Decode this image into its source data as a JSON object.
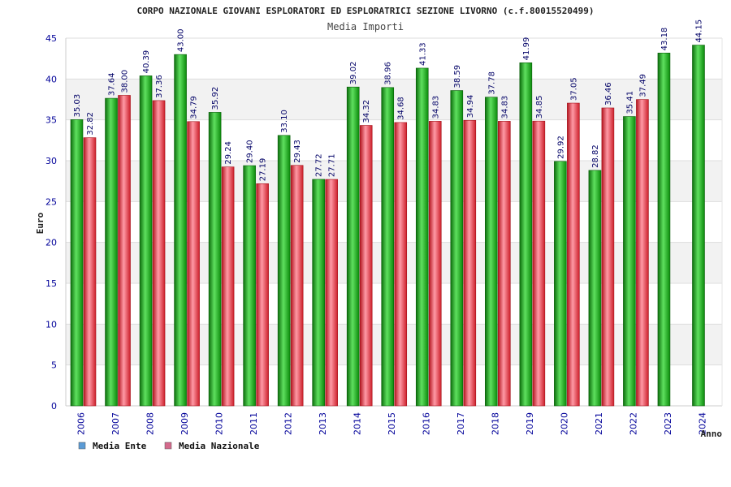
{
  "chart_data": {
    "type": "bar",
    "title": "CORPO NAZIONALE GIOVANI ESPLORATORI ED ESPLORATRICI SEZIONE LIVORNO (c.f.80015520499)",
    "subtitle": "Media Importi",
    "xlabel": "Anno",
    "ylabel": "Euro",
    "ylim": [
      0,
      45
    ],
    "yticks": [
      "0",
      "5",
      "10",
      "15",
      "20",
      "25",
      "30",
      "35",
      "40",
      "45"
    ],
    "grid": true,
    "legend_position": "bottom-left",
    "categories": [
      "2006",
      "2007",
      "2008",
      "2009",
      "2010",
      "2011",
      "2012",
      "2013",
      "2014",
      "2015",
      "2016",
      "2017",
      "2018",
      "2019",
      "2020",
      "2021",
      "2022",
      "2023",
      "2024"
    ],
    "series": [
      {
        "name": "Media Ente",
        "color": "#1fa31f",
        "legend_color": "#5b9bd5",
        "values": [
          35.03,
          37.64,
          40.39,
          43.0,
          35.92,
          29.4,
          33.1,
          27.72,
          39.02,
          38.96,
          41.33,
          38.59,
          37.78,
          41.99,
          29.92,
          28.82,
          35.41,
          43.18,
          44.15
        ],
        "labels": [
          "35.03",
          "37.64",
          "40.39",
          "43.00",
          "35.92",
          "29.40",
          "33.10",
          "27.72",
          "39.02",
          "38.96",
          "41.33",
          "38.59",
          "37.78",
          "41.99",
          "29.92",
          "28.82",
          "35.41",
          "43.18",
          "44.15"
        ]
      },
      {
        "name": "Media Nazionale",
        "color": "#e0303a",
        "legend_color": "#d46a8c",
        "values": [
          32.82,
          38.0,
          37.36,
          34.79,
          29.24,
          27.19,
          29.43,
          27.71,
          34.32,
          34.68,
          34.83,
          34.94,
          34.83,
          34.85,
          37.05,
          36.46,
          37.49,
          null,
          null
        ],
        "labels": [
          "32.82",
          "38.00",
          "37.36",
          "34.79",
          "29.24",
          "27.19",
          "29.43",
          "27.71",
          "34.32",
          "34.68",
          "34.83",
          "34.94",
          "34.83",
          "34.85",
          "37.05",
          "36.46",
          "37.49",
          null,
          null
        ]
      }
    ]
  }
}
